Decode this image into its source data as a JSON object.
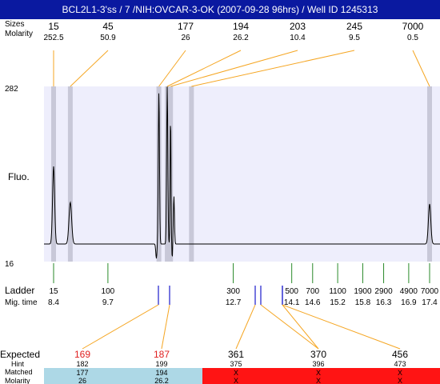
{
  "title": "BCL2L1-3'ss / 7 /NIH:OVCAR-3-OK (2007-09-28 96hrs) / Well ID 1245313",
  "labels": {
    "sizes": "Sizes",
    "molarity": "Molarity",
    "fluo": "Fluo.",
    "ladder": "Ladder",
    "mig_time": "Mig. time",
    "expected": "Expected",
    "hint": "Hint",
    "matched": "Matched",
    "molarity_bottom": "Molarity"
  },
  "colors": {
    "title_bg": "#0a19a0",
    "plot_bg": "#eeeefc",
    "peak_band": "#c8c8d8",
    "orange": "#f5a623",
    "ladder_green": "#2a8a2a",
    "blue_mark": "#1a1acc",
    "matched_bg": "#add8e6",
    "unmatched_bg": "#ff1414",
    "expected_red": "#e02020"
  },
  "chart_data": {
    "type": "line",
    "ylim": [
      16,
      282
    ],
    "y_tick_labels": [
      "282",
      "16"
    ],
    "peaks": [
      {
        "size": "15",
        "molarity": "252.5",
        "mig_time": 8.4
      },
      {
        "size": "45",
        "molarity": "50.9",
        "mig_time": 8.8
      },
      {
        "size": "177",
        "molarity": "26",
        "mig_time": 10.92
      },
      {
        "size": "194",
        "molarity": "26.2",
        "mig_time": 11.12
      },
      {
        "size": "203",
        "molarity": "10.4",
        "mig_time": 11.2
      },
      {
        "size": "245",
        "molarity": "9.5",
        "mig_time": 11.7
      },
      {
        "size": "7000",
        "molarity": "0.5",
        "mig_time": 17.4
      }
    ],
    "ladder": [
      {
        "size": "15",
        "mig_time": "8.4"
      },
      {
        "size": "100",
        "mig_time": "9.7"
      },
      {
        "size": "300",
        "mig_time": "12.7"
      },
      {
        "size": "500",
        "mig_time": "14.1"
      },
      {
        "size": "700",
        "mig_time": "14.6"
      },
      {
        "size": "1100",
        "mig_time": "15.2"
      },
      {
        "size": "1900",
        "mig_time": "15.8"
      },
      {
        "size": "2900",
        "mig_time": "16.3"
      },
      {
        "size": "4900",
        "mig_time": "16.9"
      },
      {
        "size": "7000",
        "mig_time": "17.4"
      }
    ],
    "expected": [
      {
        "expected": "169",
        "hint": "182",
        "matched": "177",
        "molarity": "26",
        "found": true
      },
      {
        "expected": "187",
        "hint": "199",
        "matched": "194",
        "molarity": "26.2",
        "found": true
      },
      {
        "expected": "361",
        "hint": "375",
        "matched": "X",
        "molarity": "X",
        "found": false
      },
      {
        "expected": "370",
        "hint": "396",
        "matched": "X",
        "molarity": "X",
        "found": false
      },
      {
        "expected": "456",
        "hint": "473",
        "matched": "X",
        "molarity": "X",
        "found": false
      }
    ]
  }
}
